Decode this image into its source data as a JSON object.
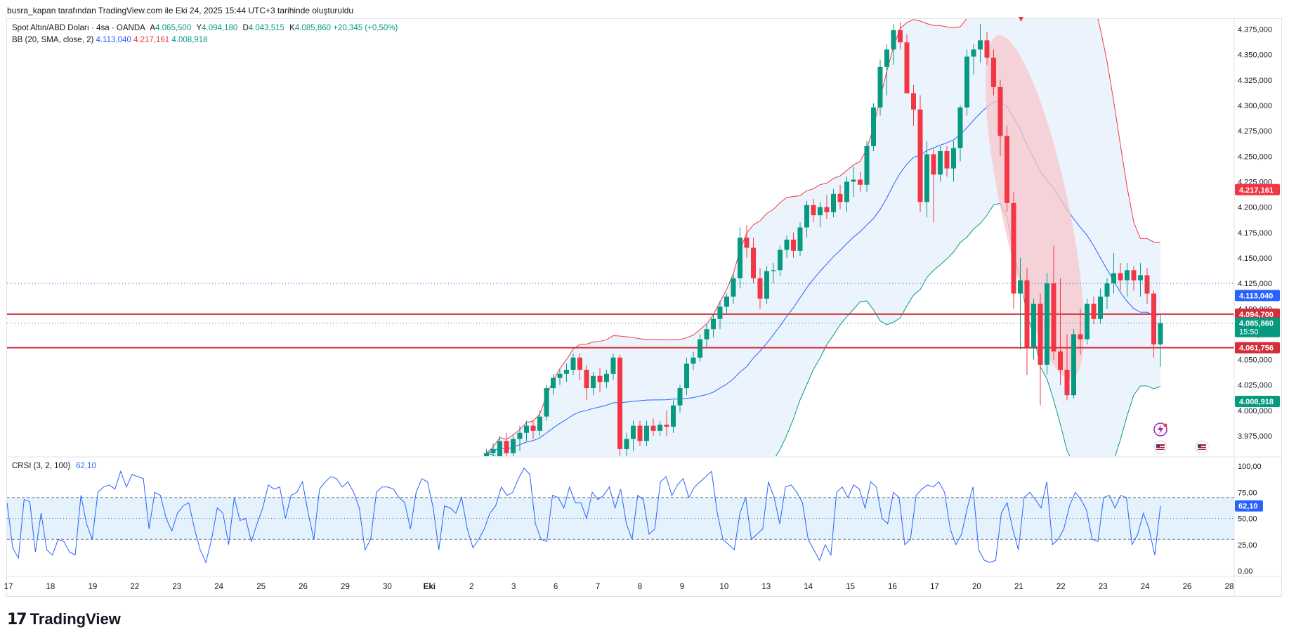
{
  "header": {
    "caption": "busra_kapan tarafından TradingView.com ile Eki 24, 2025 15:44 UTC+3 tarihinde oluşturuldu"
  },
  "legend": {
    "symbol": "Spot Altın/ABD Doları · 4sa · OANDA",
    "o_label": "A",
    "o_value": "4.065,500",
    "h_label": "Y",
    "h_value": "4.094,180",
    "l_label": "D",
    "l_value": "4.043,515",
    "c_label": "K",
    "c_value": "4.085,860",
    "change": "+20,345 (+0,50%)",
    "bb_label": "BB (20, SMA, close, 2)",
    "bb_basis": "4.113,040",
    "bb_upper": "4.217,161",
    "bb_lower": "4.008,918",
    "crsi_label": "CRSI (3, 2, 100)",
    "crsi_value": "62,10"
  },
  "colors": {
    "up": "#089981",
    "down": "#f23645",
    "bb_basis": "#2962ff",
    "bb_upper": "#f23645",
    "bb_lower": "#089981",
    "bb_fill": "#e3f0fb",
    "crsi_line": "#2962ff",
    "crsi_band": "#e3f2fd",
    "ellipse": "#f8c7cc",
    "hline": "#d32f3a"
  },
  "chart_data": [
    {
      "type": "candlestick",
      "title": "Spot Altın/ABD Doları · 4sa · OANDA",
      "ylim": [
        3955,
        4385
      ],
      "y_ticks": [
        3975,
        4000,
        4025,
        4050,
        4075,
        4100,
        4125,
        4150,
        4175,
        4200,
        4225,
        4250,
        4275,
        4300,
        4325,
        4350,
        4375
      ],
      "y_tick_labels": [
        "3.975,000",
        "4.000,000",
        "4.025,000",
        "4.050,000",
        "4.075,000",
        "4.100,000",
        "4.125,000",
        "4.150,000",
        "4.175,000",
        "4.200,000",
        "4.225,000",
        "4.250,000",
        "4.275,000",
        "4.300,000",
        "4.325,000",
        "4.350,000",
        "4.375,000"
      ],
      "x_tick_labels": [
        "17",
        "18",
        "19",
        "22",
        "23",
        "24",
        "25",
        "26",
        "29",
        "30",
        "Eki",
        "2",
        "3",
        "6",
        "7",
        "8",
        "9",
        "10",
        "13",
        "14",
        "15",
        "16",
        "17",
        "20",
        "21",
        "22",
        "23",
        "24",
        "26",
        "28"
      ],
      "candles_ohlc": [
        [
          3946,
          3962,
          3940,
          3958
        ],
        [
          3958,
          3968,
          3950,
          3962
        ],
        [
          3955,
          3975,
          3950,
          3970
        ],
        [
          3970,
          3978,
          3955,
          3958
        ],
        [
          3958,
          3975,
          3955,
          3972
        ],
        [
          3972,
          3985,
          3960,
          3978
        ],
        [
          3978,
          3990,
          3970,
          3985
        ],
        [
          3985,
          3990,
          3972,
          3980
        ],
        [
          3980,
          4000,
          3975,
          3994
        ],
        [
          3994,
          4025,
          3990,
          4022
        ],
        [
          4022,
          4036,
          4015,
          4032
        ],
        [
          4032,
          4040,
          4025,
          4036
        ],
        [
          4036,
          4046,
          4028,
          4040
        ],
        [
          4040,
          4056,
          4035,
          4052
        ],
        [
          4052,
          4056,
          4030,
          4040
        ],
        [
          4040,
          4045,
          4010,
          4022
        ],
        [
          4022,
          4038,
          4015,
          4034
        ],
        [
          4034,
          4042,
          4018,
          4028
        ],
        [
          4028,
          4040,
          4022,
          4036
        ],
        [
          4036,
          4056,
          4030,
          4052
        ],
        [
          4052,
          4055,
          3950,
          3962
        ],
        [
          3962,
          3978,
          3955,
          3972
        ],
        [
          3972,
          3990,
          3960,
          3985
        ],
        [
          3985,
          3990,
          3965,
          3970
        ],
        [
          3970,
          3990,
          3965,
          3985
        ],
        [
          3985,
          3992,
          3975,
          3980
        ],
        [
          3980,
          3990,
          3975,
          3986
        ],
        [
          3986,
          4000,
          3975,
          3984
        ],
        [
          3984,
          4010,
          3978,
          4005
        ],
        [
          4005,
          4025,
          3998,
          4022
        ],
        [
          4022,
          4052,
          4015,
          4046
        ],
        [
          4046,
          4058,
          4040,
          4052
        ],
        [
          4052,
          4075,
          4048,
          4070
        ],
        [
          4070,
          4085,
          4062,
          4080
        ],
        [
          4080,
          4095,
          4072,
          4090
        ],
        [
          4090,
          4108,
          4080,
          4102
        ],
        [
          4102,
          4115,
          4095,
          4112
        ],
        [
          4112,
          4135,
          4105,
          4130
        ],
        [
          4130,
          4180,
          4120,
          4170
        ],
        [
          4170,
          4182,
          4150,
          4160
        ],
        [
          4160,
          4170,
          4125,
          4130
        ],
        [
          4130,
          4140,
          4100,
          4110
        ],
        [
          4110,
          4142,
          4105,
          4137
        ],
        [
          4137,
          4145,
          4125,
          4138
        ],
        [
          4138,
          4162,
          4132,
          4158
        ],
        [
          4158,
          4172,
          4150,
          4168
        ],
        [
          4168,
          4175,
          4150,
          4157
        ],
        [
          4157,
          4185,
          4152,
          4180
        ],
        [
          4180,
          4206,
          4170,
          4202
        ],
        [
          4202,
          4208,
          4185,
          4192
        ],
        [
          4192,
          4205,
          4180,
          4200
        ],
        [
          4200,
          4212,
          4188,
          4195
        ],
        [
          4195,
          4218,
          4190,
          4213
        ],
        [
          4213,
          4222,
          4198,
          4205
        ],
        [
          4205,
          4230,
          4195,
          4225
        ],
        [
          4225,
          4240,
          4210,
          4227
        ],
        [
          4227,
          4235,
          4215,
          4222
        ],
        [
          4222,
          4265,
          4215,
          4260
        ],
        [
          4260,
          4302,
          4255,
          4298
        ],
        [
          4298,
          4345,
          4290,
          4338
        ],
        [
          4338,
          4360,
          4310,
          4355
        ],
        [
          4355,
          4380,
          4340,
          4374
        ],
        [
          4374,
          4382,
          4355,
          4362
        ],
        [
          4362,
          4370,
          4330,
          4312
        ],
        [
          4312,
          4320,
          4280,
          4296
        ],
        [
          4296,
          4310,
          4195,
          4205
        ],
        [
          4205,
          4265,
          4190,
          4252
        ],
        [
          4252,
          4258,
          4185,
          4232
        ],
        [
          4232,
          4260,
          4225,
          4255
        ],
        [
          4255,
          4260,
          4230,
          4238
        ],
        [
          4238,
          4265,
          4225,
          4258
        ],
        [
          4258,
          4300,
          4245,
          4298
        ],
        [
          4298,
          4355,
          4290,
          4348
        ],
        [
          4348,
          4360,
          4330,
          4355
        ],
        [
          4355,
          4380,
          4342,
          4364
        ],
        [
          4364,
          4372,
          4340,
          4347
        ],
        [
          4347,
          4355,
          4310,
          4318
        ],
        [
          4318,
          4325,
          4250,
          4270
        ],
        [
          4270,
          4280,
          4195,
          4204
        ],
        [
          4204,
          4215,
          4100,
          4115
        ],
        [
          4115,
          4150,
          4060,
          4128
        ],
        [
          4128,
          4140,
          4035,
          4062
        ],
        [
          4062,
          4110,
          4050,
          4105
        ],
        [
          4105,
          4115,
          4005,
          4045
        ],
        [
          4045,
          4135,
          4035,
          4125
        ],
        [
          4125,
          4162,
          4050,
          4058
        ],
        [
          4058,
          4130,
          4025,
          4040
        ],
        [
          4040,
          4075,
          4010,
          4015
        ],
        [
          4015,
          4080,
          4012,
          4075
        ],
        [
          4075,
          4100,
          4055,
          4070
        ],
        [
          4070,
          4110,
          4065,
          4105
        ],
        [
          4105,
          4112,
          4085,
          4090
        ],
        [
          4090,
          4120,
          4085,
          4112
        ],
        [
          4112,
          4130,
          4100,
          4125
        ],
        [
          4125,
          4155,
          4115,
          4135
        ],
        [
          4135,
          4145,
          4118,
          4128
        ],
        [
          4128,
          4145,
          4112,
          4138
        ],
        [
          4138,
          4142,
          4118,
          4128
        ],
        [
          4128,
          4145,
          4112,
          4133
        ],
        [
          4133,
          4140,
          4105,
          4115
        ],
        [
          4115,
          4118,
          4052,
          4065
        ],
        [
          4065,
          4094,
          4043,
          4086
        ]
      ],
      "bollinger": {
        "length": 20,
        "basis": 4113.04,
        "upper": 4217.161,
        "lower": 4008.918
      },
      "horizontal_lines": [
        4094.7,
        4061.756
      ],
      "dotted_lines": [
        4125.0,
        4085.86
      ],
      "price_tags": [
        {
          "label": "4.217,161",
          "value": 4217.161,
          "color": "#f23645"
        },
        {
          "label": "4.113,040",
          "value": 4113.04,
          "color": "#2962ff"
        },
        {
          "label": "4.094,700",
          "value": 4094.7,
          "color": "#d32f3a"
        },
        {
          "label": "4.085,860",
          "sub": "15:50",
          "value": 4085.86,
          "color": "#089981"
        },
        {
          "label": "4.061,756",
          "value": 4061.756,
          "color": "#d32f3a"
        },
        {
          "label": "4.008,918",
          "value": 4008.918,
          "color": "#089981"
        }
      ]
    },
    {
      "type": "line",
      "title": "CRSI (3, 2, 100)",
      "ylim": [
        -5,
        105
      ],
      "y_ticks": [
        0,
        25,
        50,
        75,
        100
      ],
      "y_tick_labels": [
        "0,00",
        "25,00",
        "50,00",
        "75,00",
        "100,00"
      ],
      "band": [
        30,
        70
      ],
      "last_value_label": "62,10",
      "series": [
        {
          "values": [
            65,
            22,
            12,
            68,
            66,
            18,
            55,
            20,
            15,
            30,
            28,
            18,
            15,
            72,
            45,
            30,
            75,
            80,
            82,
            78,
            95,
            80,
            92,
            90,
            88,
            40,
            75,
            72,
            50,
            38,
            55,
            62,
            65,
            40,
            20,
            8,
            30,
            60,
            55,
            25,
            70,
            48,
            50,
            28,
            45,
            60,
            82,
            78,
            80,
            50,
            72,
            75,
            85,
            55,
            30,
            78,
            85,
            90,
            88,
            80,
            85,
            75,
            60,
            20,
            30,
            75,
            80,
            80,
            78,
            70,
            65,
            40,
            75,
            88,
            85,
            60,
            20,
            62,
            60,
            55,
            70,
            40,
            22,
            30,
            40,
            55,
            62,
            80,
            72,
            75,
            88,
            98,
            92,
            45,
            30,
            28,
            72,
            70,
            60,
            80,
            65,
            65,
            50,
            75,
            68,
            72,
            80,
            60,
            78,
            45,
            30,
            72,
            68,
            35,
            40,
            85,
            90,
            72,
            82,
            88,
            70,
            80,
            85,
            90,
            95,
            55,
            30,
            25,
            20,
            55,
            70,
            30,
            35,
            40,
            85,
            70,
            45,
            80,
            82,
            75,
            65,
            30,
            20,
            10,
            25,
            15,
            75,
            80,
            70,
            82,
            78,
            60,
            85,
            80,
            50,
            45,
            75,
            70,
            25,
            30,
            72,
            78,
            82,
            80,
            85,
            75,
            40,
            25,
            35,
            60,
            80,
            20,
            10,
            8,
            10,
            55,
            65,
            40,
            20,
            70,
            75,
            68,
            60,
            85,
            25,
            30,
            40,
            62,
            75,
            68,
            58,
            30,
            28,
            70,
            72,
            60,
            72,
            70,
            25,
            35,
            55,
            40,
            15,
            62
          ]
        }
      ]
    }
  ]
}
